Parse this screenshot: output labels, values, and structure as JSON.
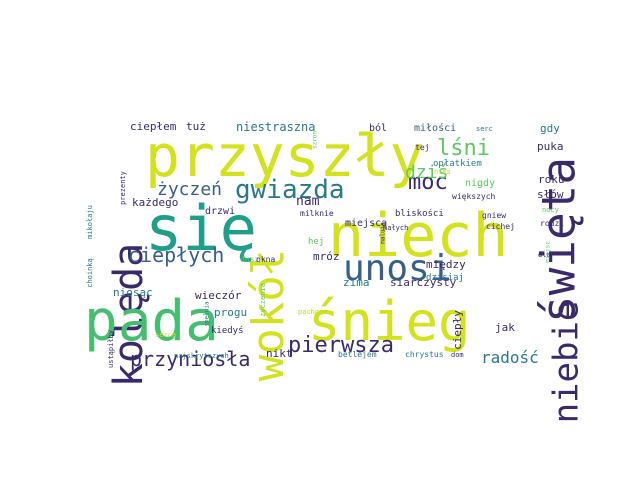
{
  "words": [
    {
      "text": "przyszły",
      "color": "#d2e21b"
    },
    {
      "text": "się",
      "color": "#1f9e89"
    },
    {
      "text": "niech",
      "color": "#d2e21b"
    },
    {
      "text": "kolęda",
      "color": "#3b2a6b"
    },
    {
      "text": "święta",
      "color": "#3b2a6b"
    },
    {
      "text": "wokół",
      "color": "#d2e21b"
    },
    {
      "text": "pada",
      "color": "#44bf70"
    },
    {
      "text": "śnieg",
      "color": "#d2e21b"
    },
    {
      "text": "unosi",
      "color": "#355f8d"
    },
    {
      "text": "niebie",
      "color": "#3b2a6b"
    },
    {
      "text": "gwiazda",
      "color": "#2a788e"
    },
    {
      "text": "moc",
      "color": "#3b2a6b"
    },
    {
      "text": "lśni",
      "color": "#5ec962"
    },
    {
      "text": "dziś",
      "color": "#5ec962"
    },
    {
      "text": "życzeń",
      "color": "#355f8d"
    },
    {
      "text": "ciepłych",
      "color": "#355f8d"
    },
    {
      "text": "pierwsza",
      "color": "#3b2a6b"
    },
    {
      "text": "przyniosła",
      "color": "#3b2a6b"
    },
    {
      "text": "radość",
      "color": "#2a788e"
    },
    {
      "text": "nam",
      "color": "#3b2a6b"
    },
    {
      "text": "niestraszna",
      "color": "#2a788e"
    },
    {
      "text": "ciepłem",
      "color": "#3b2a6b"
    },
    {
      "text": "tuż",
      "color": "#3b2a6b"
    },
    {
      "text": "ból",
      "color": "#3b2a6b"
    },
    {
      "text": "miłości",
      "color": "#355f8d"
    },
    {
      "text": "serc",
      "color": "#2a788e"
    },
    {
      "text": "gdy",
      "color": "#2a788e"
    },
    {
      "text": "puka",
      "color": "#3b2a6b"
    },
    {
      "text": "roku",
      "color": "#3b2a6b"
    },
    {
      "text": "słów",
      "color": "#3b2a6b"
    },
    {
      "text": "nocy",
      "color": "#5ec962"
    },
    {
      "text": "rodzi",
      "color": "#3b2a6b"
    },
    {
      "text": "gniew",
      "color": "#3b2a6b"
    },
    {
      "text": "cichej",
      "color": "#3b2a6b"
    },
    {
      "text": "miejsc",
      "color": "#5ec962"
    },
    {
      "text": "dla",
      "color": "#3b2a6b"
    },
    {
      "text": "opłatkiem",
      "color": "#2a788e"
    },
    {
      "text": "tej",
      "color": "#3b2a6b"
    },
    {
      "text": "nieś",
      "color": "#b5de2b"
    },
    {
      "text": "nigdy",
      "color": "#5ec962"
    },
    {
      "text": "większych",
      "color": "#3b2a6b"
    },
    {
      "text": "każdego",
      "color": "#3b2a6b"
    },
    {
      "text": "drzwi",
      "color": "#3b2a6b"
    },
    {
      "text": "miejsca",
      "color": "#3b2a6b"
    },
    {
      "text": "bliskości",
      "color": "#3b2a6b"
    },
    {
      "text": "milknie",
      "color": "#3b2a6b"
    },
    {
      "text": "małych",
      "color": "#3b2a6b"
    },
    {
      "text": "mróz",
      "color": "#3b2a6b"
    },
    {
      "text": "zima",
      "color": "#2a788e"
    },
    {
      "text": "siarczysty",
      "color": "#3b2a6b"
    },
    {
      "text": "między",
      "color": "#3b2a6b"
    },
    {
      "text": "dzisiaj",
      "color": "#2a788e"
    },
    {
      "text": "hej",
      "color": "#5ec962"
    },
    {
      "text": "dusz",
      "color": "#5ec962"
    },
    {
      "text": "okna",
      "color": "#3b2a6b"
    },
    {
      "text": "niosąc",
      "color": "#2a788e"
    },
    {
      "text": "wieczór",
      "color": "#3b2a6b"
    },
    {
      "text": "progu",
      "color": "#2a788e"
    },
    {
      "text": "kiedyś",
      "color": "#3b2a6b"
    },
    {
      "text": "nikt",
      "color": "#3b2a6b"
    },
    {
      "text": "ciepły",
      "color": "#3b2a6b"
    },
    {
      "text": "jak",
      "color": "#3b2a6b"
    },
    {
      "text": "betlejem",
      "color": "#2a788e"
    },
    {
      "text": "chrystus",
      "color": "#2a788e"
    },
    {
      "text": "dom",
      "color": "#3b2a6b"
    },
    {
      "text": "najskrytszych",
      "color": "#2a788e"
    },
    {
      "text": "pachnie",
      "color": "#b5de2b"
    },
    {
      "text": "życzenia",
      "color": "#5ec962"
    },
    {
      "text": "ustąpiłby",
      "color": "#3b2a6b"
    },
    {
      "text": "choinką",
      "color": "#2a788e"
    },
    {
      "text": "mikołaju",
      "color": "#2a788e"
    },
    {
      "text": "prezenty",
      "color": "#3b2a6b"
    },
    {
      "text": "spełnia",
      "color": "#2a788e"
    },
    {
      "text": "serca",
      "color": "#d2e21b"
    },
    {
      "text": "malują",
      "color": "#3b2a6b"
    },
    {
      "text": "szron",
      "color": "#5ec962"
    }
  ]
}
